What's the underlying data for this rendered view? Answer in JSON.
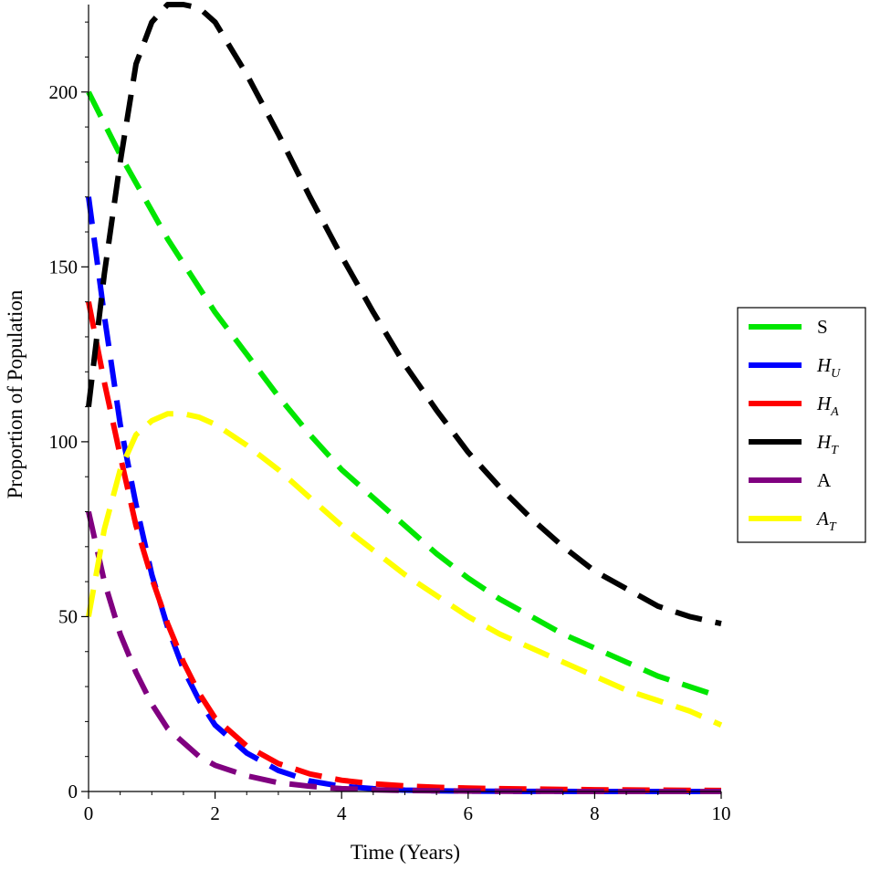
{
  "chart_data": {
    "type": "line",
    "xlabel": "Time (Years)",
    "ylabel": "Proportion of Population",
    "xlim": [
      0,
      10
    ],
    "ylim": [
      0,
      225
    ],
    "x_ticks": [
      0,
      2,
      4,
      6,
      8,
      10
    ],
    "y_ticks": [
      0,
      50,
      100,
      150,
      200
    ],
    "line_style": "dashed",
    "grid": false,
    "legend_position": "right",
    "x": [
      0,
      0.25,
      0.5,
      0.75,
      1,
      1.25,
      1.5,
      1.75,
      2,
      2.5,
      3,
      3.5,
      4,
      4.5,
      5,
      5.5,
      6,
      6.5,
      7,
      7.5,
      8,
      8.5,
      9,
      9.5,
      10
    ],
    "series": [
      {
        "name": "S",
        "color": "#00e600",
        "values": [
          200,
          191,
          182,
          174,
          166,
          158,
          151,
          144,
          137,
          125,
          113,
          102,
          92,
          84,
          76,
          68,
          61,
          55,
          50,
          45,
          41,
          37,
          33,
          30,
          27
        ]
      },
      {
        "name": "H_U",
        "color": "#0000ff",
        "values": [
          170,
          136,
          105,
          82,
          62,
          47,
          35,
          26,
          19,
          11,
          6,
          3,
          1.5,
          0.8,
          0.4,
          0.2,
          0.1,
          0.05,
          0.03,
          0.02,
          0.01,
          0.01,
          0.01,
          0,
          0
        ]
      },
      {
        "name": "H_A",
        "color": "#ff0000",
        "values": [
          140,
          117,
          96,
          76,
          61,
          48,
          37,
          28,
          21,
          13,
          8,
          5,
          3.2,
          2.2,
          1.6,
          1.2,
          1,
          0.8,
          0.7,
          0.6,
          0.5,
          0.45,
          0.4,
          0.35,
          0.3
        ]
      },
      {
        "name": "H_T",
        "color": "#000000",
        "values": [
          110,
          148,
          180,
          208,
          220,
          225,
          225,
          224,
          220,
          205,
          188,
          170,
          153,
          137,
          122,
          109,
          97,
          87,
          78,
          70,
          63,
          58,
          53,
          50,
          48
        ]
      },
      {
        "name": "A",
        "color": "#800080",
        "values": [
          80,
          60,
          45,
          34,
          25,
          18,
          14,
          10,
          7.5,
          4.5,
          2.5,
          1.5,
          0.8,
          0.5,
          0.3,
          0.2,
          0.1,
          0.05,
          0.03,
          0.02,
          0.01,
          0,
          0,
          0,
          0
        ]
      },
      {
        "name": "A_T",
        "color": "#ffff00",
        "values": [
          50,
          75,
          92,
          102,
          106,
          108,
          108,
          107,
          105,
          99,
          92,
          84,
          76,
          69,
          62,
          56,
          50,
          45,
          41,
          37,
          33,
          29,
          26,
          23,
          19
        ]
      }
    ]
  },
  "legend": {
    "items": [
      {
        "main": "S",
        "sub": "",
        "style": "roman",
        "color": "#00e600"
      },
      {
        "main": "H",
        "sub": "U",
        "style": "italic",
        "color": "#0000ff"
      },
      {
        "main": "H",
        "sub": "A",
        "style": "italic",
        "color": "#ff0000"
      },
      {
        "main": "H",
        "sub": "T",
        "style": "italic",
        "color": "#000000"
      },
      {
        "main": "A",
        "sub": "",
        "style": "roman",
        "color": "#800080"
      },
      {
        "main": "A",
        "sub": "T",
        "style": "italic",
        "color": "#ffff00"
      }
    ]
  }
}
